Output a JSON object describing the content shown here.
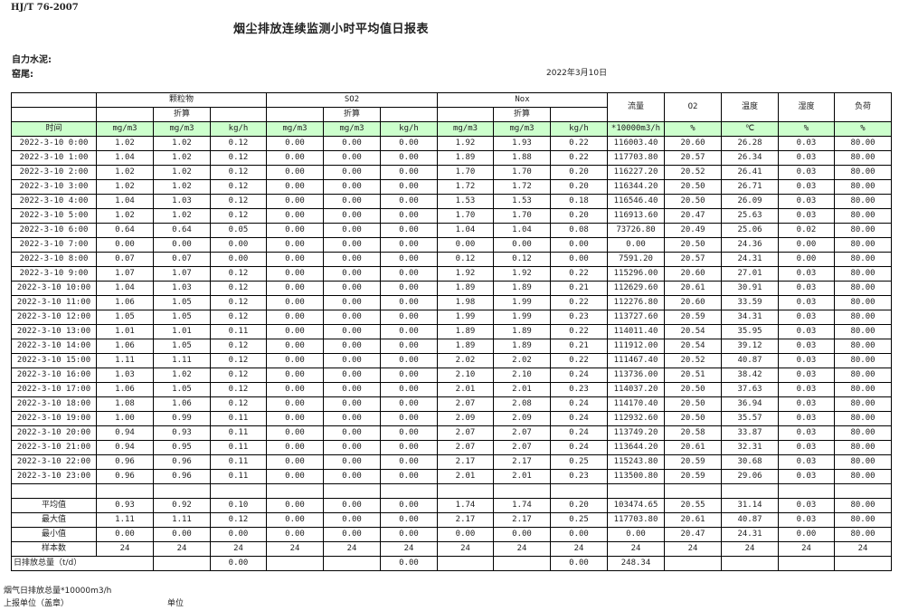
{
  "header": {
    "standard": "HJ/T  76-2007",
    "title": "烟尘排放连续监测小时平均值日报表",
    "company": "自力水泥:",
    "kiln": "窑尾:",
    "date": "2022年3月10日"
  },
  "table": {
    "groups": {
      "pm": "颗粒物",
      "so2": "SO2",
      "nox": "Nox",
      "flow": "流量",
      "o2": "O2",
      "temp": "温度",
      "humidity": "湿度",
      "load": "负荷"
    },
    "converted_label": "折算",
    "units": [
      "时间",
      "mg/m3",
      "mg/m3",
      "kg/h",
      "mg/m3",
      "mg/m3",
      "kg/h",
      "mg/m3",
      "mg/m3",
      "kg/h",
      "*10000m3/h",
      "%",
      "℃",
      "%",
      "%"
    ],
    "rows": [
      [
        "2022-3-10 0:00",
        "1.02",
        "1.02",
        "0.12",
        "0.00",
        "0.00",
        "0.00",
        "1.92",
        "1.93",
        "0.22",
        "116003.40",
        "20.60",
        "26.28",
        "0.03",
        "80.00"
      ],
      [
        "2022-3-10 1:00",
        "1.04",
        "1.02",
        "0.12",
        "0.00",
        "0.00",
        "0.00",
        "1.89",
        "1.88",
        "0.22",
        "117703.80",
        "20.57",
        "26.34",
        "0.03",
        "80.00"
      ],
      [
        "2022-3-10 2:00",
        "1.02",
        "1.02",
        "0.12",
        "0.00",
        "0.00",
        "0.00",
        "1.70",
        "1.70",
        "0.20",
        "116227.20",
        "20.52",
        "26.41",
        "0.03",
        "80.00"
      ],
      [
        "2022-3-10 3:00",
        "1.02",
        "1.02",
        "0.12",
        "0.00",
        "0.00",
        "0.00",
        "1.72",
        "1.72",
        "0.20",
        "116344.20",
        "20.50",
        "26.71",
        "0.03",
        "80.00"
      ],
      [
        "2022-3-10 4:00",
        "1.04",
        "1.03",
        "0.12",
        "0.00",
        "0.00",
        "0.00",
        "1.53",
        "1.53",
        "0.18",
        "116546.40",
        "20.50",
        "26.09",
        "0.03",
        "80.00"
      ],
      [
        "2022-3-10 5:00",
        "1.02",
        "1.02",
        "0.12",
        "0.00",
        "0.00",
        "0.00",
        "1.70",
        "1.70",
        "0.20",
        "116913.60",
        "20.47",
        "25.63",
        "0.03",
        "80.00"
      ],
      [
        "2022-3-10 6:00",
        "0.64",
        "0.64",
        "0.05",
        "0.00",
        "0.00",
        "0.00",
        "1.04",
        "1.04",
        "0.08",
        "73726.80",
        "20.49",
        "25.06",
        "0.02",
        "80.00"
      ],
      [
        "2022-3-10 7:00",
        "0.00",
        "0.00",
        "0.00",
        "0.00",
        "0.00",
        "0.00",
        "0.00",
        "0.00",
        "0.00",
        "0.00",
        "20.50",
        "24.36",
        "0.00",
        "80.00"
      ],
      [
        "2022-3-10 8:00",
        "0.07",
        "0.07",
        "0.00",
        "0.00",
        "0.00",
        "0.00",
        "0.12",
        "0.12",
        "0.00",
        "7591.20",
        "20.57",
        "24.31",
        "0.00",
        "80.00"
      ],
      [
        "2022-3-10 9:00",
        "1.07",
        "1.07",
        "0.12",
        "0.00",
        "0.00",
        "0.00",
        "1.92",
        "1.92",
        "0.22",
        "115296.00",
        "20.60",
        "27.01",
        "0.03",
        "80.00"
      ],
      [
        "2022-3-10 10:00",
        "1.04",
        "1.03",
        "0.12",
        "0.00",
        "0.00",
        "0.00",
        "1.89",
        "1.89",
        "0.21",
        "112629.60",
        "20.61",
        "30.91",
        "0.03",
        "80.00"
      ],
      [
        "2022-3-10 11:00",
        "1.06",
        "1.05",
        "0.12",
        "0.00",
        "0.00",
        "0.00",
        "1.98",
        "1.99",
        "0.22",
        "112276.80",
        "20.60",
        "33.59",
        "0.03",
        "80.00"
      ],
      [
        "2022-3-10 12:00",
        "1.05",
        "1.05",
        "0.12",
        "0.00",
        "0.00",
        "0.00",
        "1.99",
        "1.99",
        "0.23",
        "113727.60",
        "20.59",
        "34.31",
        "0.03",
        "80.00"
      ],
      [
        "2022-3-10 13:00",
        "1.01",
        "1.01",
        "0.11",
        "0.00",
        "0.00",
        "0.00",
        "1.89",
        "1.89",
        "0.22",
        "114011.40",
        "20.54",
        "35.95",
        "0.03",
        "80.00"
      ],
      [
        "2022-3-10 14:00",
        "1.06",
        "1.05",
        "0.12",
        "0.00",
        "0.00",
        "0.00",
        "1.89",
        "1.89",
        "0.21",
        "111912.00",
        "20.54",
        "39.12",
        "0.03",
        "80.00"
      ],
      [
        "2022-3-10 15:00",
        "1.11",
        "1.11",
        "0.12",
        "0.00",
        "0.00",
        "0.00",
        "2.02",
        "2.02",
        "0.22",
        "111467.40",
        "20.52",
        "40.87",
        "0.03",
        "80.00"
      ],
      [
        "2022-3-10 16:00",
        "1.03",
        "1.02",
        "0.12",
        "0.00",
        "0.00",
        "0.00",
        "2.10",
        "2.10",
        "0.24",
        "113736.00",
        "20.51",
        "38.42",
        "0.03",
        "80.00"
      ],
      [
        "2022-3-10 17:00",
        "1.06",
        "1.05",
        "0.12",
        "0.00",
        "0.00",
        "0.00",
        "2.01",
        "2.01",
        "0.23",
        "114037.20",
        "20.50",
        "37.63",
        "0.03",
        "80.00"
      ],
      [
        "2022-3-10 18:00",
        "1.08",
        "1.06",
        "0.12",
        "0.00",
        "0.00",
        "0.00",
        "2.07",
        "2.08",
        "0.24",
        "114170.40",
        "20.50",
        "36.94",
        "0.03",
        "80.00"
      ],
      [
        "2022-3-10 19:00",
        "1.00",
        "0.99",
        "0.11",
        "0.00",
        "0.00",
        "0.00",
        "2.09",
        "2.09",
        "0.24",
        "112932.60",
        "20.50",
        "35.57",
        "0.03",
        "80.00"
      ],
      [
        "2022-3-10 20:00",
        "0.94",
        "0.93",
        "0.11",
        "0.00",
        "0.00",
        "0.00",
        "2.07",
        "2.07",
        "0.24",
        "113749.20",
        "20.58",
        "33.87",
        "0.03",
        "80.00"
      ],
      [
        "2022-3-10 21:00",
        "0.94",
        "0.95",
        "0.11",
        "0.00",
        "0.00",
        "0.00",
        "2.07",
        "2.07",
        "0.24",
        "113644.20",
        "20.61",
        "32.31",
        "0.03",
        "80.00"
      ],
      [
        "2022-3-10 22:00",
        "0.96",
        "0.96",
        "0.11",
        "0.00",
        "0.00",
        "0.00",
        "2.17",
        "2.17",
        "0.25",
        "115243.80",
        "20.59",
        "30.68",
        "0.03",
        "80.00"
      ],
      [
        "2022-3-10 23:00",
        "0.96",
        "0.96",
        "0.11",
        "0.00",
        "0.00",
        "0.00",
        "2.01",
        "2.01",
        "0.23",
        "113500.80",
        "20.59",
        "29.06",
        "0.03",
        "80.00"
      ]
    ],
    "stats": [
      [
        "平均值",
        "0.93",
        "0.92",
        "0.10",
        "0.00",
        "0.00",
        "0.00",
        "1.74",
        "1.74",
        "0.20",
        "103474.65",
        "20.55",
        "31.14",
        "0.03",
        "80.00"
      ],
      [
        "最大值",
        "1.11",
        "1.11",
        "0.12",
        "0.00",
        "0.00",
        "0.00",
        "2.17",
        "2.17",
        "0.25",
        "117703.80",
        "20.61",
        "40.87",
        "0.03",
        "80.00"
      ],
      [
        "最小值",
        "0.00",
        "0.00",
        "0.00",
        "0.00",
        "0.00",
        "0.00",
        "0.00",
        "0.00",
        "0.00",
        "0.00",
        "20.47",
        "24.31",
        "0.00",
        "80.00"
      ],
      [
        "样本数",
        "24",
        "24",
        "24",
        "24",
        "24",
        "24",
        "24",
        "24",
        "24",
        "24",
        "24",
        "24",
        "24",
        "24"
      ]
    ],
    "total": {
      "label": "日排放总量（t/d）",
      "cells": [
        "",
        "0.00",
        "",
        "",
        "0.00",
        "",
        "",
        "0.00",
        "248.34",
        "",
        "",
        "",
        ""
      ]
    }
  },
  "footer": {
    "flue_gas_total": "烟气日排放总量*10000m3/h",
    "reporting_unit": "上报单位（盖章）",
    "unit": "单位"
  }
}
